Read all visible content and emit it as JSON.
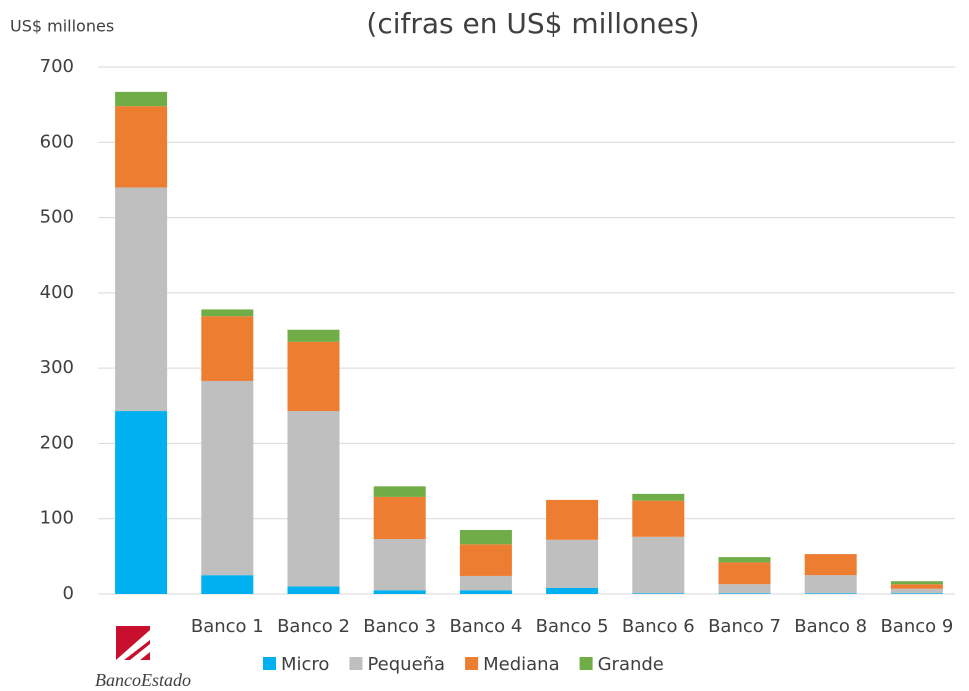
{
  "chart_data": {
    "type": "stacked_bar",
    "title": "(cifras en US$ millones)",
    "y_axis_label": "US$ millones",
    "categories": [
      "BancoEstado",
      "Banco 1",
      "Banco 2",
      "Banco 3",
      "Banco 4",
      "Banco 5",
      "Banco 6",
      "Banco 7",
      "Banco 8",
      "Banco 9"
    ],
    "series": [
      {
        "name": "Micro",
        "color": "#00b0f0",
        "values": [
          243,
          25,
          10,
          5,
          5,
          8,
          1,
          1,
          1,
          1
        ]
      },
      {
        "name": "Pequeña",
        "color": "#bfbfbf",
        "values": [
          297,
          258,
          233,
          68,
          19,
          64,
          75,
          12,
          24,
          6
        ]
      },
      {
        "name": "Mediana",
        "color": "#ed7d31",
        "values": [
          108,
          86,
          92,
          56,
          42,
          53,
          48,
          29,
          28,
          6
        ]
      },
      {
        "name": "Grande",
        "color": "#70ad47",
        "values": [
          19,
          9,
          16,
          14,
          19,
          0,
          9,
          7,
          0,
          4
        ]
      }
    ],
    "ylim": [
      0,
      700
    ],
    "yticks": [
      0,
      100,
      200,
      300,
      400,
      500,
      600,
      700
    ],
    "grid": true,
    "legend": "bottom"
  }
}
